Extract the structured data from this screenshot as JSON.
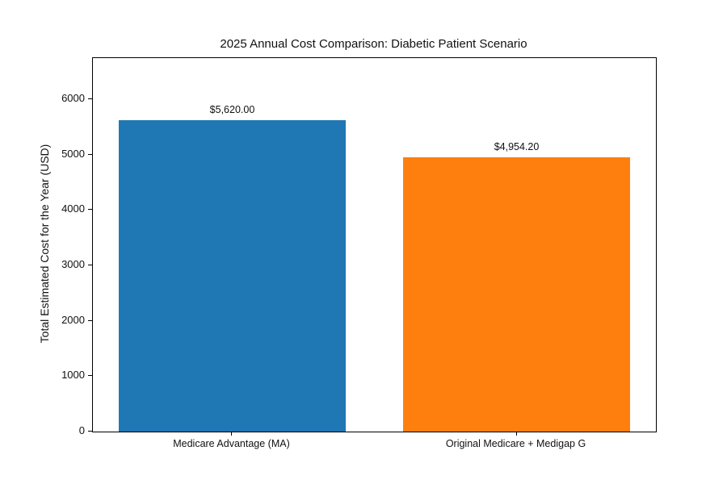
{
  "chart_data": {
    "type": "bar",
    "title": "2025 Annual Cost Comparison: Diabetic Patient Scenario",
    "xlabel": "",
    "ylabel": "Total Estimated Cost for the Year (USD)",
    "categories": [
      "Medicare Advantage (MA)",
      "Original Medicare + Medigap G"
    ],
    "values": [
      5620.0,
      4954.2
    ],
    "value_labels": [
      "$5,620.00",
      "$4,954.20"
    ],
    "bar_colors": [
      "#1f77b4",
      "#ff7f0e"
    ],
    "yticks": [
      0,
      1000,
      2000,
      3000,
      4000,
      5000,
      6000
    ],
    "ylim": [
      0,
      6744
    ],
    "grid": false,
    "legend": null,
    "background_color": "#ffffff",
    "axis_color": "#000000",
    "text_color": "#111111"
  }
}
